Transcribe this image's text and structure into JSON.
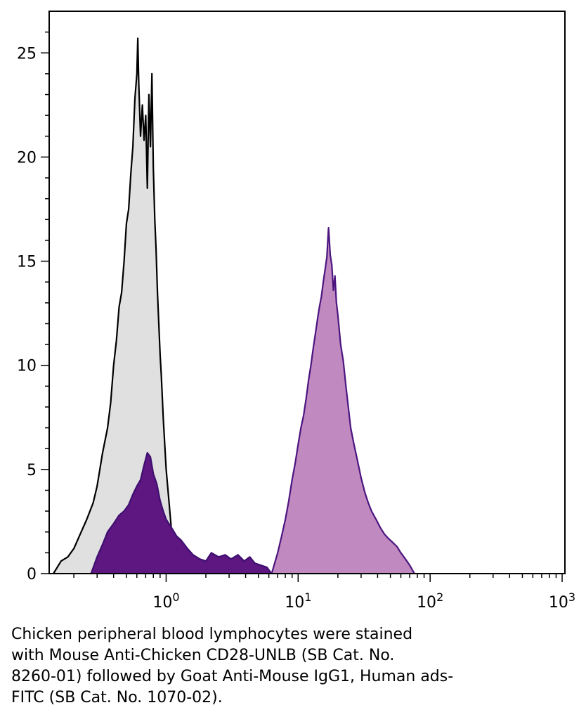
{
  "chart_data": {
    "type": "area",
    "title": "",
    "xlabel": "",
    "ylabel": "",
    "x_scale": "log",
    "xlim": [
      0.13,
      1050
    ],
    "ylim": [
      0,
      27
    ],
    "grid": false,
    "legend": "none",
    "x_ticks": [
      {
        "value": 1,
        "base": "10",
        "exp": "0"
      },
      {
        "value": 10,
        "base": "10",
        "exp": "1"
      },
      {
        "value": 100,
        "base": "10",
        "exp": "2"
      },
      {
        "value": 1000,
        "base": "10",
        "exp": "3"
      }
    ],
    "y_ticks": [
      "0",
      "5",
      "10",
      "15",
      "20",
      "25"
    ],
    "series": [
      {
        "fill": "#e0e0e0",
        "stroke": "#000000",
        "x": [
          0.14,
          0.16,
          0.18,
          0.2,
          0.22,
          0.25,
          0.28,
          0.3,
          0.33,
          0.36,
          0.38,
          0.4,
          0.42,
          0.44,
          0.46,
          0.48,
          0.5,
          0.52,
          0.54,
          0.56,
          0.58,
          0.6,
          0.61,
          0.62,
          0.64,
          0.66,
          0.68,
          0.7,
          0.72,
          0.74,
          0.76,
          0.78,
          0.8,
          0.82,
          0.84,
          0.86,
          0.88,
          0.9,
          0.92,
          0.95,
          0.98,
          1.0,
          1.05,
          1.1,
          1.15,
          1.2
        ],
        "values": [
          0,
          0.6,
          0.8,
          1.2,
          1.8,
          2.6,
          3.4,
          4.2,
          5.8,
          7.0,
          8.2,
          10.0,
          11.2,
          12.8,
          13.5,
          15.0,
          16.8,
          17.5,
          19.2,
          20.5,
          22.8,
          24.0,
          25.7,
          23.5,
          21.0,
          22.5,
          20.8,
          22.0,
          18.5,
          23.0,
          20.5,
          24.0,
          19.5,
          17.0,
          15.5,
          13.5,
          12.0,
          10.5,
          9.5,
          7.5,
          6.0,
          5.0,
          3.5,
          2.0,
          1.0,
          0.2
        ]
      },
      {
        "fill": "#5e1680",
        "stroke": "#3e0f70",
        "x": [
          0.27,
          0.3,
          0.33,
          0.36,
          0.4,
          0.44,
          0.48,
          0.52,
          0.56,
          0.6,
          0.64,
          0.68,
          0.72,
          0.76,
          0.8,
          0.85,
          0.9,
          0.95,
          1.0,
          1.1,
          1.2,
          1.3,
          1.45,
          1.6,
          1.8,
          2.0,
          2.2,
          2.5,
          2.8,
          3.1,
          3.5,
          3.9,
          4.3,
          4.7,
          5.2,
          5.8,
          6.3
        ],
        "values": [
          0,
          0.8,
          1.4,
          2.0,
          2.4,
          2.8,
          3.0,
          3.3,
          3.8,
          4.2,
          4.5,
          5.2,
          5.8,
          5.6,
          4.8,
          4.3,
          3.5,
          3.0,
          2.6,
          2.2,
          1.8,
          1.6,
          1.2,
          0.9,
          0.7,
          0.6,
          1.0,
          0.8,
          0.9,
          0.7,
          0.9,
          0.6,
          0.8,
          0.5,
          0.4,
          0.3,
          0
        ]
      },
      {
        "fill": "#c08ac0",
        "stroke": "#4b1580",
        "x": [
          6.3,
          7.0,
          7.5,
          8.0,
          8.5,
          9.0,
          9.5,
          10.0,
          10.5,
          11.0,
          11.5,
          12.0,
          12.5,
          13.0,
          13.5,
          14.0,
          14.5,
          15.0,
          15.5,
          16.0,
          16.5,
          17.0,
          17.5,
          18.0,
          18.5,
          19.0,
          19.5,
          20.0,
          21.0,
          22.0,
          23.0,
          24.0,
          25.0,
          26.5,
          28.0,
          30.0,
          32.0,
          34.0,
          36.0,
          39.0,
          42.0,
          45.0,
          48.0,
          52.0,
          56.0,
          60.0,
          65.0,
          70.0,
          73.0,
          76.0
        ],
        "values": [
          0,
          1.0,
          1.8,
          2.6,
          3.5,
          4.5,
          5.3,
          6.2,
          7.0,
          7.6,
          8.4,
          9.3,
          10.0,
          10.8,
          11.5,
          12.2,
          12.8,
          13.3,
          14.0,
          14.6,
          15.2,
          16.6,
          15.3,
          14.8,
          13.6,
          14.3,
          13.0,
          12.4,
          11.0,
          10.2,
          9.0,
          8.0,
          7.0,
          6.2,
          5.5,
          4.6,
          3.9,
          3.4,
          3.0,
          2.6,
          2.2,
          1.9,
          1.7,
          1.5,
          1.3,
          1.0,
          0.7,
          0.4,
          0.2,
          0
        ]
      }
    ]
  },
  "caption": "Chicken peripheral blood lymphocytes were stained\nwith Mouse Anti-Chicken CD28-UNLB (SB Cat. No.\n8260-01) followed by Goat Anti-Mouse IgG1, Human ads-\nFITC (SB Cat. No. 1070-02)."
}
